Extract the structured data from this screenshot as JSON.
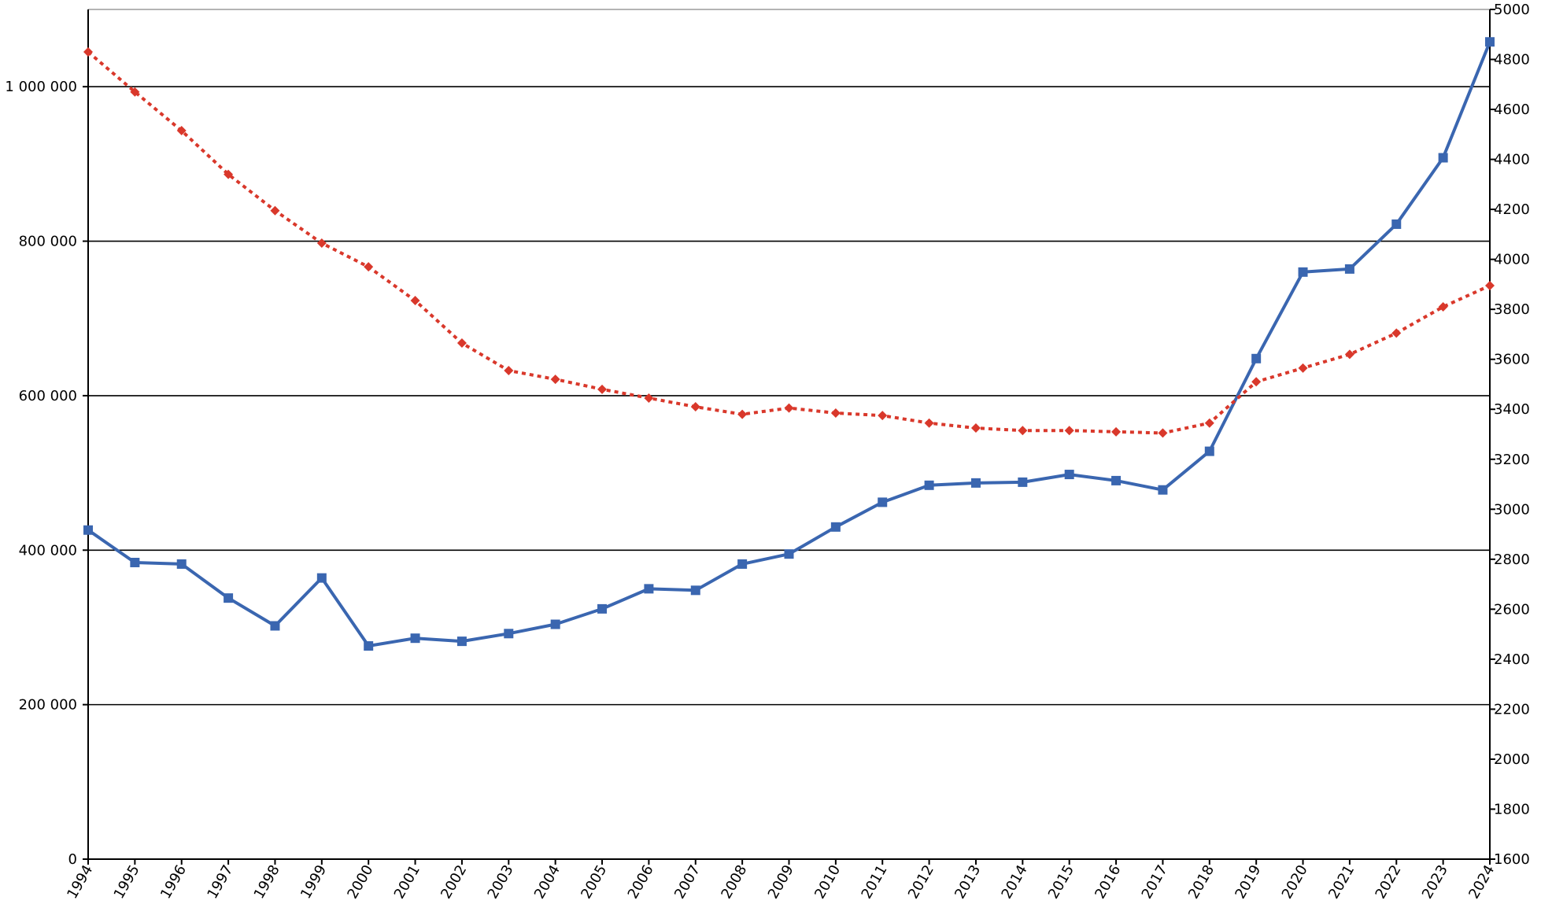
{
  "chart_data": {
    "type": "line",
    "title": "",
    "xlabel": "",
    "ylabel": "",
    "y2label": "",
    "grid": true,
    "legend": "none",
    "x": [
      1994,
      1995,
      1996,
      1997,
      1998,
      1999,
      2000,
      2001,
      2002,
      2003,
      2004,
      2005,
      2006,
      2007,
      2008,
      2009,
      2010,
      2011,
      2012,
      2013,
      2014,
      2015,
      2016,
      2017,
      2018,
      2019,
      2020,
      2021,
      2022,
      2023,
      2024
    ],
    "x_tick_labels": [
      "1994",
      "1995",
      "1996",
      "1997",
      "1998",
      "1999",
      "2000",
      "2001",
      "2002",
      "2003",
      "2004",
      "2005",
      "2006",
      "2007",
      "2008",
      "2009",
      "2010",
      "2011",
      "2012",
      "2013",
      "2014",
      "2015",
      "2016",
      "2017",
      "2018",
      "2019",
      "2020",
      "2021",
      "2022",
      "2023",
      "2024"
    ],
    "y_left": {
      "ylim": [
        0,
        1100000
      ],
      "ticks": [
        0,
        200000,
        400000,
        600000,
        800000,
        1000000
      ],
      "tick_labels": [
        "0",
        "200 000",
        "400 000",
        "600 000",
        "800 000",
        "1 000 000"
      ]
    },
    "y_right": {
      "ylim": [
        1600,
        5000
      ],
      "ticks": [
        1600,
        1800,
        2000,
        2200,
        2400,
        2600,
        2800,
        3000,
        3200,
        3400,
        3600,
        3800,
        4000,
        4200,
        4400,
        4600,
        4800,
        5000
      ],
      "tick_labels": [
        "1600",
        "1800",
        "2000",
        "2200",
        "2400",
        "2600",
        "2800",
        "3000",
        "3200",
        "3400",
        "3600",
        "3800",
        "4000",
        "4200",
        "4400",
        "4600",
        "4800",
        "5000"
      ]
    },
    "series": [
      {
        "axis": "left",
        "style": "solid",
        "marker": "square",
        "color": "#3a66b0",
        "values": [
          426000,
          384000,
          382000,
          338000,
          302000,
          364000,
          276000,
          286000,
          282000,
          292000,
          304000,
          324000,
          350000,
          348000,
          382000,
          395000,
          430000,
          462000,
          484000,
          487000,
          488000,
          498000,
          490000,
          478000,
          528000,
          648000,
          760000,
          764000,
          822000,
          908000,
          1058000
        ]
      },
      {
        "axis": "right",
        "style": "dotted",
        "marker": "diamond",
        "color": "#d9382b",
        "values": [
          4830,
          4670,
          4515,
          4340,
          4195,
          4065,
          3970,
          3835,
          3665,
          3555,
          3520,
          3480,
          3445,
          3410,
          3380,
          3405,
          3385,
          3375,
          3345,
          3325,
          3315,
          3315,
          3310,
          3305,
          3345,
          3510,
          3565,
          3620,
          3705,
          3810,
          3895
        ]
      }
    ]
  }
}
